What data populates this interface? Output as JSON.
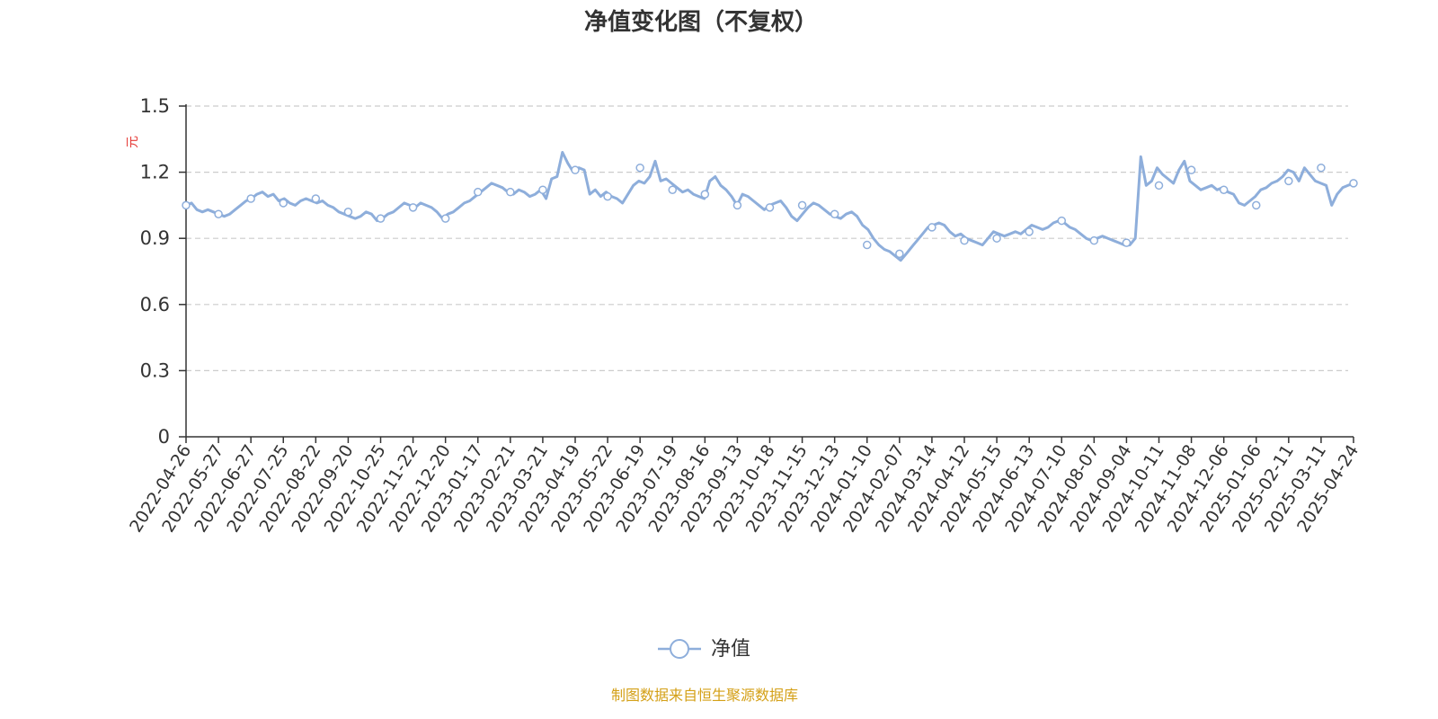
{
  "chart_data": {
    "type": "line",
    "title": "净值变化图（不复权）",
    "ylabel": "元",
    "ylim": [
      0,
      1.5
    ],
    "yticks": [
      "0",
      "0.3",
      "0.6",
      "0.9",
      "1.2",
      "1.5"
    ],
    "ytick_values": [
      0,
      0.3,
      0.6,
      0.9,
      1.2,
      1.5
    ],
    "grid": true,
    "legend": "bottom",
    "categories": [
      "2022-04-26",
      "2022-05-27",
      "2022-06-27",
      "2022-07-25",
      "2022-08-22",
      "2022-09-20",
      "2022-10-25",
      "2022-11-22",
      "2022-12-20",
      "2023-01-17",
      "2023-02-21",
      "2023-03-21",
      "2023-04-19",
      "2023-05-22",
      "2023-06-19",
      "2023-07-19",
      "2023-08-16",
      "2023-09-13",
      "2023-10-18",
      "2023-11-15",
      "2023-12-13",
      "2024-01-10",
      "2024-02-07",
      "2024-03-14",
      "2024-04-12",
      "2024-05-15",
      "2024-06-13",
      "2024-07-10",
      "2024-08-07",
      "2024-09-04",
      "2024-10-11",
      "2024-11-08",
      "2024-12-06",
      "2025-01-06",
      "2025-02-11",
      "2025-03-11",
      "2025-04-24"
    ],
    "series": [
      {
        "name": "净值",
        "color": "#8eaedb",
        "values": [
          1.05,
          1.01,
          1.08,
          1.06,
          1.08,
          1.02,
          0.99,
          1.04,
          0.99,
          1.11,
          1.11,
          1.12,
          1.21,
          1.09,
          1.22,
          1.12,
          1.1,
          1.05,
          1.04,
          1.05,
          1.01,
          0.87,
          0.83,
          0.95,
          0.89,
          0.9,
          0.93,
          0.98,
          0.89,
          0.88,
          1.14,
          1.21,
          1.12,
          1.05,
          1.16,
          1.22,
          1.15
        ],
        "detail": [
          1.05,
          1.06,
          1.03,
          1.02,
          1.03,
          1.02,
          1.01,
          1.0,
          1.01,
          1.03,
          1.05,
          1.07,
          1.08,
          1.1,
          1.11,
          1.09,
          1.1,
          1.07,
          1.08,
          1.06,
          1.05,
          1.07,
          1.08,
          1.07,
          1.06,
          1.07,
          1.05,
          1.04,
          1.02,
          1.01,
          1.0,
          0.99,
          1.0,
          1.02,
          1.01,
          0.98,
          0.99,
          1.01,
          1.02,
          1.04,
          1.06,
          1.05,
          1.04,
          1.06,
          1.05,
          1.04,
          1.02,
          0.99,
          1.01,
          1.02,
          1.04,
          1.06,
          1.07,
          1.09,
          1.11,
          1.13,
          1.15,
          1.14,
          1.13,
          1.11,
          1.1,
          1.12,
          1.11,
          1.09,
          1.1,
          1.12,
          1.08,
          1.17,
          1.18,
          1.29,
          1.24,
          1.2,
          1.22,
          1.21,
          1.1,
          1.12,
          1.09,
          1.11,
          1.09,
          1.08,
          1.06,
          1.1,
          1.14,
          1.16,
          1.15,
          1.18,
          1.25,
          1.16,
          1.17,
          1.15,
          1.13,
          1.11,
          1.12,
          1.1,
          1.09,
          1.08,
          1.16,
          1.18,
          1.14,
          1.12,
          1.09,
          1.05,
          1.1,
          1.09,
          1.07,
          1.05,
          1.03,
          1.05,
          1.06,
          1.07,
          1.04,
          1.0,
          0.98,
          1.01,
          1.04,
          1.06,
          1.05,
          1.03,
          1.01,
          1.0,
          0.99,
          1.01,
          1.02,
          1.0,
          0.96,
          0.94,
          0.9,
          0.87,
          0.85,
          0.84,
          0.82,
          0.8,
          0.83,
          0.86,
          0.89,
          0.92,
          0.95,
          0.96,
          0.97,
          0.96,
          0.93,
          0.91,
          0.92,
          0.9,
          0.89,
          0.88,
          0.87,
          0.9,
          0.93,
          0.92,
          0.91,
          0.92,
          0.93,
          0.92,
          0.94,
          0.96,
          0.95,
          0.94,
          0.95,
          0.97,
          0.98,
          0.97,
          0.95,
          0.94,
          0.92,
          0.9,
          0.89,
          0.9,
          0.91,
          0.9,
          0.89,
          0.88,
          0.87,
          0.87,
          0.9,
          1.27,
          1.14,
          1.16,
          1.22,
          1.19,
          1.17,
          1.15,
          1.21,
          1.25,
          1.16,
          1.14,
          1.12,
          1.13,
          1.14,
          1.12,
          1.13,
          1.11,
          1.1,
          1.06,
          1.05,
          1.07,
          1.09,
          1.12,
          1.13,
          1.15,
          1.16,
          1.18,
          1.21,
          1.2,
          1.16,
          1.22,
          1.19,
          1.16,
          1.15,
          1.14,
          1.05,
          1.1,
          1.13,
          1.14,
          1.15
        ]
      }
    ]
  },
  "legend_label": "净值",
  "source_text": "制图数据来自恒生聚源数据库",
  "colors": {
    "line": "#8eaedb",
    "title_text": "#333333",
    "axis": "#333333",
    "grid": "#cccccc",
    "unit_label": "#e53935",
    "source_text": "#d4a017"
  }
}
